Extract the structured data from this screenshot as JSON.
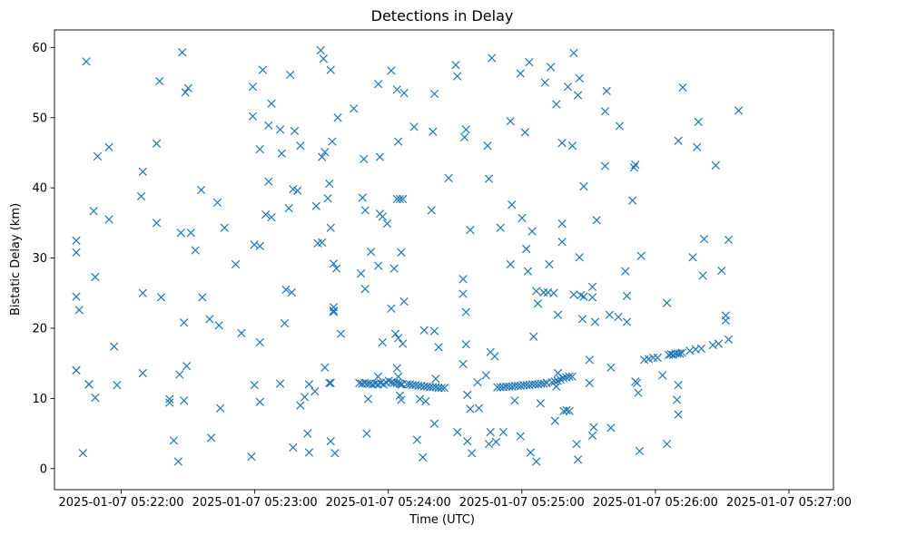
{
  "chart_data": {
    "type": "scatter",
    "title": "Detections in Delay",
    "xlabel": "Time (UTC)",
    "ylabel": "Bistatic Delay (km)",
    "marker": "x",
    "color": "#1f77b4",
    "x_unit": "seconds after 2025-01-07 05:22:00",
    "xlim": [
      -30,
      320
    ],
    "ylim": [
      -3,
      62.5
    ],
    "x_ticks": [
      {
        "value": 0,
        "label": "2025-01-07 05:22:00"
      },
      {
        "value": 60,
        "label": "2025-01-07 05:23:00"
      },
      {
        "value": 120,
        "label": "2025-01-07 05:24:00"
      },
      {
        "value": 180,
        "label": "2025-01-07 05:25:00"
      },
      {
        "value": 240,
        "label": "2025-01-07 05:26:00"
      },
      {
        "value": 300,
        "label": "2025-01-07 05:27:00"
      }
    ],
    "y_ticks": [
      {
        "value": 0,
        "label": "0"
      },
      {
        "value": 10,
        "label": "10"
      },
      {
        "value": 20,
        "label": "20"
      },
      {
        "value": 30,
        "label": "30"
      },
      {
        "value": 40,
        "label": "40"
      },
      {
        "value": 50,
        "label": "50"
      },
      {
        "value": 60,
        "label": "60"
      }
    ],
    "points": [
      [
        -15.7,
        58
      ],
      [
        -20.2,
        32.5
      ],
      [
        -20.2,
        30.8
      ],
      [
        -20.2,
        24.5
      ],
      [
        -18.9,
        22.6
      ],
      [
        -20.2,
        14
      ],
      [
        -14.5,
        12
      ],
      [
        -17.2,
        2.2
      ],
      [
        -10.6,
        44.5
      ],
      [
        -12.4,
        36.7
      ],
      [
        -11.7,
        27.3
      ],
      [
        -11.7,
        10.1
      ],
      [
        -5.5,
        45.8
      ],
      [
        -5.5,
        35.5
      ],
      [
        -3.2,
        17.4
      ],
      [
        -1.9,
        11.9
      ],
      [
        9,
        38.8
      ],
      [
        9.7,
        42.3
      ],
      [
        9.7,
        25
      ],
      [
        9.7,
        13.6
      ],
      [
        15.9,
        46.3
      ],
      [
        15.9,
        35
      ],
      [
        17.2,
        55.2
      ],
      [
        17.9,
        24.4
      ],
      [
        21.7,
        9.9
      ],
      [
        21.7,
        9.4
      ],
      [
        23.6,
        4
      ],
      [
        27.4,
        59.3
      ],
      [
        26.8,
        33.6
      ],
      [
        26.2,
        13.4
      ],
      [
        25.6,
        1
      ],
      [
        28.8,
        53.6
      ],
      [
        30.1,
        54.2
      ],
      [
        31.3,
        33.6
      ],
      [
        33.3,
        31.1
      ],
      [
        28.2,
        20.8
      ],
      [
        29.4,
        14.6
      ],
      [
        28.2,
        9.7
      ],
      [
        35.9,
        39.7
      ],
      [
        36.4,
        24.4
      ],
      [
        39.7,
        21.3
      ],
      [
        40.4,
        4.4
      ],
      [
        43.2,
        37.9
      ],
      [
        43.9,
        20.4
      ],
      [
        44.5,
        8.6
      ],
      [
        46.4,
        34.3
      ],
      [
        51.4,
        29.1
      ],
      [
        54,
        19.3
      ],
      [
        58.5,
        1.7
      ],
      [
        59.1,
        50.2
      ],
      [
        59.1,
        54.4
      ],
      [
        59.8,
        31.9
      ],
      [
        59.8,
        11.9
      ],
      [
        62.3,
        45.5
      ],
      [
        62.3,
        31.7
      ],
      [
        62.3,
        18
      ],
      [
        62.3,
        9.5
      ],
      [
        63.6,
        56.8
      ],
      [
        66.2,
        40.9
      ],
      [
        66.2,
        48.9
      ],
      [
        67.5,
        52
      ],
      [
        67.5,
        35.8
      ],
      [
        64.9,
        36.2
      ],
      [
        71.4,
        48.3
      ],
      [
        72.1,
        44.9
      ],
      [
        73.4,
        20.7
      ],
      [
        71.4,
        12.1
      ],
      [
        74,
        25.5
      ],
      [
        75.3,
        37.1
      ],
      [
        75.9,
        56.1
      ],
      [
        76.6,
        25.1
      ],
      [
        77.2,
        39.8
      ],
      [
        77.9,
        48.1
      ],
      [
        77.2,
        3
      ],
      [
        79.2,
        39.6
      ],
      [
        80.5,
        46
      ],
      [
        80.5,
        9
      ],
      [
        82.4,
        10.2
      ],
      [
        83.7,
        5
      ],
      [
        84.4,
        12
      ],
      [
        84.4,
        2.3
      ],
      [
        87,
        11
      ],
      [
        87.6,
        37.4
      ],
      [
        88.3,
        32.1
      ],
      [
        89.6,
        59.6
      ],
      [
        90.2,
        44.4
      ],
      [
        90.2,
        32.2
      ],
      [
        90.9,
        58.4
      ],
      [
        91.5,
        45.1
      ],
      [
        91.5,
        14.4
      ],
      [
        92.8,
        38.5
      ],
      [
        93.5,
        40.6
      ],
      [
        93.5,
        12.2
      ],
      [
        94.1,
        56.8
      ],
      [
        94.1,
        34.3
      ],
      [
        94.1,
        12.2
      ],
      [
        94.1,
        3.9
      ],
      [
        94.8,
        46.6
      ],
      [
        95.4,
        29.2
      ],
      [
        95.4,
        23
      ],
      [
        95.4,
        22.5
      ],
      [
        95.4,
        22.3
      ],
      [
        96,
        2.2
      ],
      [
        96.7,
        28.5
      ],
      [
        97.3,
        50
      ],
      [
        98.7,
        19.2
      ],
      [
        104.5,
        51.3
      ],
      [
        107.7,
        27.8
      ],
      [
        108.4,
        38.6
      ],
      [
        109,
        44.1
      ],
      [
        109.6,
        36.8
      ],
      [
        109.6,
        25.6
      ],
      [
        110.3,
        5
      ],
      [
        110.9,
        9.9
      ],
      [
        112.2,
        30.9
      ],
      [
        115.5,
        54.8
      ],
      [
        116.2,
        44.4
      ],
      [
        116.2,
        36.3
      ],
      [
        115.5,
        28.9
      ],
      [
        117.4,
        35.9
      ],
      [
        117.4,
        18
      ],
      [
        119.5,
        34.9
      ],
      [
        121.3,
        56.7
      ],
      [
        121.3,
        22.8
      ],
      [
        122.6,
        28.5
      ],
      [
        123.2,
        19.2
      ],
      [
        124.5,
        18.6
      ],
      [
        123.9,
        54
      ],
      [
        124.5,
        46.6
      ],
      [
        123.9,
        38.4
      ],
      [
        125.2,
        38.4
      ],
      [
        125.8,
        30.8
      ],
      [
        126.5,
        38.4
      ],
      [
        127.1,
        53.5
      ],
      [
        126.5,
        17.8
      ],
      [
        127.1,
        23.8
      ],
      [
        123.9,
        14.3
      ],
      [
        124.5,
        13.1
      ],
      [
        125.2,
        10.4
      ],
      [
        125.8,
        12
      ],
      [
        125.8,
        9.8
      ],
      [
        131.6,
        48.7
      ],
      [
        132.9,
        4.1
      ],
      [
        134.2,
        9.9
      ],
      [
        135.5,
        1.6
      ],
      [
        136.1,
        19.7
      ],
      [
        136.8,
        9.6
      ],
      [
        139.4,
        36.8
      ],
      [
        140,
        48
      ],
      [
        140.7,
        53.4
      ],
      [
        140.7,
        19.6
      ],
      [
        140.7,
        6.4
      ],
      [
        141.3,
        12.8
      ],
      [
        142.6,
        17.3
      ],
      [
        147.1,
        41.4
      ],
      [
        150.3,
        57.5
      ],
      [
        151,
        55.9
      ],
      [
        151,
        5.2
      ],
      [
        153.6,
        27
      ],
      [
        153.6,
        24.9
      ],
      [
        153.6,
        14.9
      ],
      [
        154.2,
        47.2
      ],
      [
        154.9,
        48.3
      ],
      [
        154.9,
        22.3
      ],
      [
        154.9,
        17.7
      ],
      [
        155.5,
        10.5
      ],
      [
        155.5,
        3.9
      ],
      [
        156.8,
        34
      ],
      [
        156.8,
        8.5
      ],
      [
        157.5,
        2.2
      ],
      [
        160.7,
        8.6
      ],
      [
        160.1,
        12.3
      ],
      [
        163.9,
        13.3
      ],
      [
        164.6,
        46
      ],
      [
        165.2,
        41.3
      ],
      [
        165.2,
        3.5
      ],
      [
        165.9,
        16.6
      ],
      [
        165.9,
        5.2
      ],
      [
        166.5,
        58.5
      ],
      [
        167.8,
        16
      ],
      [
        168.4,
        3.8
      ],
      [
        170.4,
        34.3
      ],
      [
        171.7,
        5.2
      ],
      [
        174.9,
        49.5
      ],
      [
        175.5,
        37.6
      ],
      [
        174.9,
        29.1
      ],
      [
        176.8,
        9.7
      ],
      [
        179.4,
        56.3
      ],
      [
        180.1,
        35.7
      ],
      [
        179.4,
        4.6
      ],
      [
        181.4,
        47.9
      ],
      [
        182,
        31.3
      ],
      [
        182.7,
        28.1
      ],
      [
        183.3,
        57.9
      ],
      [
        184.6,
        33.8
      ],
      [
        185.3,
        18.8
      ],
      [
        183.9,
        2.3
      ],
      [
        186.5,
        1
      ],
      [
        186.5,
        25.3
      ],
      [
        187.2,
        23.5
      ],
      [
        188.4,
        9.3
      ],
      [
        189.8,
        25.1
      ],
      [
        190.4,
        55
      ],
      [
        191.7,
        25.1
      ],
      [
        192.3,
        29.1
      ],
      [
        193,
        57.2
      ],
      [
        194.3,
        25
      ],
      [
        195.5,
        51.9
      ],
      [
        196.2,
        21.9
      ],
      [
        198.1,
        46.4
      ],
      [
        198.1,
        32.3
      ],
      [
        198.1,
        34.9
      ],
      [
        198.8,
        8.2
      ],
      [
        200.1,
        8.3
      ],
      [
        200.7,
        54.4
      ],
      [
        201.4,
        8.2
      ],
      [
        202.7,
        46
      ],
      [
        203.3,
        59.2
      ],
      [
        203.3,
        24.8
      ],
      [
        194.9,
        6.8
      ],
      [
        204.6,
        3.5
      ],
      [
        205.2,
        1.3
      ],
      [
        205.2,
        53.2
      ],
      [
        205.9,
        55.6
      ],
      [
        205.9,
        30.1
      ],
      [
        206.5,
        24.7
      ],
      [
        207.8,
        40.2
      ],
      [
        207.2,
        21.3
      ],
      [
        207.8,
        24.5
      ],
      [
        210.4,
        12.2
      ],
      [
        210.4,
        15.5
      ],
      [
        211.7,
        25.9
      ],
      [
        211.7,
        24.4
      ],
      [
        211.7,
        4.7
      ],
      [
        212.3,
        5.9
      ],
      [
        212.9,
        20.9
      ],
      [
        213.6,
        35.4
      ],
      [
        217.4,
        43.1
      ],
      [
        218.1,
        53.8
      ],
      [
        217.4,
        50.9
      ],
      [
        219.4,
        21.9
      ],
      [
        220,
        14.4
      ],
      [
        220,
        5.8
      ],
      [
        223.3,
        21.6
      ],
      [
        223.9,
        48.8
      ],
      [
        226.5,
        28.1
      ],
      [
        227.2,
        24.6
      ],
      [
        227.2,
        20.9
      ],
      [
        229.7,
        38.2
      ],
      [
        230.4,
        42.9
      ],
      [
        231,
        43.3
      ],
      [
        231,
        12.4
      ],
      [
        231.7,
        12.2
      ],
      [
        232.3,
        10.8
      ],
      [
        232.9,
        2.5
      ],
      [
        233.6,
        30.3
      ],
      [
        245.2,
        23.6
      ],
      [
        245.2,
        3.5
      ],
      [
        249.7,
        9.8
      ],
      [
        250.3,
        11.9
      ],
      [
        250.3,
        7.7
      ],
      [
        250.3,
        46.7
      ],
      [
        252.3,
        54.3
      ],
      [
        256.8,
        30.1
      ],
      [
        258.7,
        45.8
      ],
      [
        259.3,
        49.4
      ],
      [
        261.3,
        27.5
      ],
      [
        261.9,
        32.7
      ],
      [
        267.1,
        43.2
      ],
      [
        269.7,
        28.2
      ],
      [
        271.6,
        21.8
      ],
      [
        271.6,
        21.1
      ],
      [
        272.9,
        32.6
      ],
      [
        272.9,
        18.4
      ],
      [
        277.4,
        51
      ],
      [
        -20.2,
        14
      ],
      [
        -14.5,
        12
      ],
      [
        235,
        15.5
      ],
      [
        237,
        15.6
      ],
      [
        239,
        15.8
      ],
      [
        241,
        15.8
      ],
      [
        243.2,
        13.3
      ],
      [
        246,
        16.2
      ],
      [
        247,
        16.3
      ],
      [
        248,
        16.2
      ],
      [
        249,
        16.4
      ],
      [
        250,
        16.4
      ],
      [
        251,
        16.4
      ],
      [
        252,
        16.5
      ],
      [
        255.5,
        16.8
      ],
      [
        258.1,
        17
      ],
      [
        260.6,
        17.1
      ],
      [
        265.8,
        17.6
      ],
      [
        268.4,
        17.8
      ],
      [
        107,
        12.2
      ],
      [
        108.2,
        12.1
      ],
      [
        109.4,
        12.2
      ],
      [
        110.6,
        12.1
      ],
      [
        111.8,
        12.1
      ],
      [
        113,
        12
      ],
      [
        114.2,
        12.1
      ],
      [
        115.4,
        12
      ],
      [
        116.6,
        12.2
      ],
      [
        117.8,
        12
      ],
      [
        119,
        12.3
      ],
      [
        120.2,
        12.5
      ],
      [
        121.4,
        12.3
      ],
      [
        122.6,
        12.2
      ],
      [
        123.8,
        12.2
      ],
      [
        125,
        12.1
      ],
      [
        126.2,
        12
      ],
      [
        128.4,
        12
      ],
      [
        129.7,
        12
      ],
      [
        130.9,
        11.9
      ],
      [
        132.2,
        11.9
      ],
      [
        133.5,
        11.8
      ],
      [
        134.8,
        11.8
      ],
      [
        136.1,
        11.7
      ],
      [
        137.4,
        11.7
      ],
      [
        138.7,
        11.6
      ],
      [
        140,
        11.6
      ],
      [
        141.3,
        11.6
      ],
      [
        142.6,
        11.5
      ],
      [
        143.9,
        11.5
      ],
      [
        145.2,
        11.5
      ],
      [
        115.4,
        13.1
      ],
      [
        169,
        11.6
      ],
      [
        170.4,
        11.6
      ],
      [
        171.7,
        11.6
      ],
      [
        173,
        11.7
      ],
      [
        174.3,
        11.7
      ],
      [
        175.6,
        11.7
      ],
      [
        176.9,
        11.8
      ],
      [
        178.2,
        11.8
      ],
      [
        179.5,
        11.8
      ],
      [
        180.8,
        11.9
      ],
      [
        182.1,
        11.9
      ],
      [
        183.4,
        11.9
      ],
      [
        184.7,
        12
      ],
      [
        186,
        12
      ],
      [
        187.3,
        12
      ],
      [
        188.6,
        12.1
      ],
      [
        189.9,
        12.1
      ],
      [
        191.2,
        12.2
      ],
      [
        193.5,
        12.3
      ],
      [
        194.8,
        12.4
      ],
      [
        196.1,
        12.5
      ],
      [
        197.4,
        12.7
      ],
      [
        198.7,
        12.9
      ],
      [
        200,
        13
      ],
      [
        201.3,
        13.1
      ],
      [
        202.6,
        13.1
      ],
      [
        195.5,
        11.7
      ],
      [
        196.2,
        13.6
      ]
    ]
  }
}
